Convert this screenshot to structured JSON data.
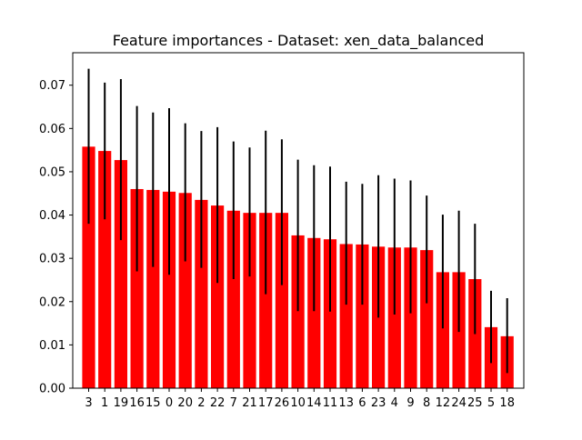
{
  "chart_data": {
    "type": "bar",
    "title": "Feature importances - Dataset: xen_data_balanced",
    "xlabel": "",
    "ylabel": "",
    "categories": [
      "3",
      "1",
      "19",
      "16",
      "15",
      "0",
      "20",
      "2",
      "22",
      "7",
      "21",
      "17",
      "26",
      "10",
      "14",
      "11",
      "13",
      "6",
      "23",
      "4",
      "9",
      "8",
      "12",
      "24",
      "25",
      "5",
      "18"
    ],
    "values": [
      0.0558,
      0.0548,
      0.0527,
      0.046,
      0.0458,
      0.0454,
      0.0451,
      0.0435,
      0.0422,
      0.041,
      0.0405,
      0.0405,
      0.0405,
      0.0353,
      0.0347,
      0.0344,
      0.0333,
      0.0332,
      0.0327,
      0.0325,
      0.0325,
      0.0319,
      0.0268,
      0.0268,
      0.0252,
      0.0141,
      0.012
    ],
    "error_low": [
      0.038,
      0.039,
      0.0342,
      0.027,
      0.028,
      0.0262,
      0.0293,
      0.0278,
      0.0243,
      0.0252,
      0.0258,
      0.0217,
      0.0238,
      0.0178,
      0.0178,
      0.0177,
      0.0193,
      0.0193,
      0.0163,
      0.017,
      0.0173,
      0.0196,
      0.0138,
      0.013,
      0.0125,
      0.0058,
      0.0035
    ],
    "error_high": [
      0.0738,
      0.0706,
      0.0714,
      0.0652,
      0.0637,
      0.0647,
      0.0612,
      0.0594,
      0.0603,
      0.057,
      0.0556,
      0.0595,
      0.0575,
      0.0528,
      0.0515,
      0.0512,
      0.0477,
      0.0472,
      0.0492,
      0.0484,
      0.048,
      0.0445,
      0.0401,
      0.041,
      0.038,
      0.0225,
      0.0208
    ],
    "yticks": [
      "0.00",
      "0.01",
      "0.02",
      "0.03",
      "0.04",
      "0.05",
      "0.06",
      "0.07"
    ],
    "ylim": [
      0,
      0.0775
    ],
    "grid": false,
    "colors": {
      "bar": "#ff0000",
      "error_bar": "#000000",
      "axes": "#000000",
      "background": "#ffffff"
    }
  }
}
